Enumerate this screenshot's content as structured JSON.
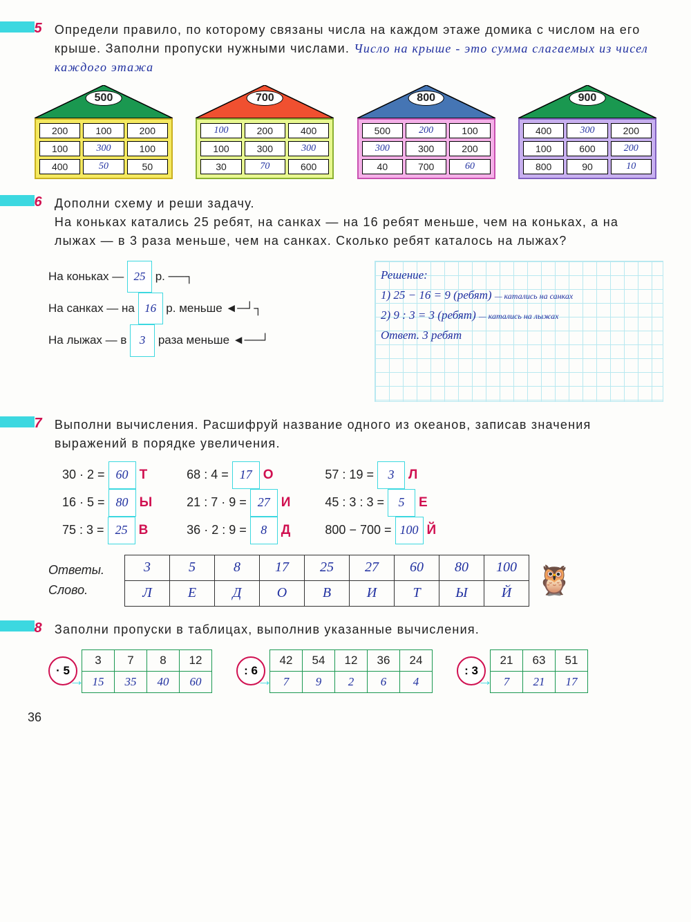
{
  "page_number": "36",
  "task5": {
    "num": "5",
    "text": "Определи правило, по которому связаны числа на каждом этаже домика с числом на его крыше. Заполни пропуски нужными числами.",
    "handwritten": "Число на крыше - это сумма слагаемых из чисел каждого этажа",
    "houses": [
      {
        "roof": "500",
        "roof_fill": "#1a9850",
        "body_color": "#f5e960",
        "border": "#c9b020",
        "rows": [
          [
            "200",
            "100",
            "200"
          ],
          [
            "100",
            "300",
            "100"
          ],
          [
            "400",
            "50",
            "50"
          ]
        ],
        "hand": [
          [
            0,
            0,
            0
          ],
          [
            0,
            1,
            0
          ],
          [
            0,
            1,
            0
          ]
        ]
      },
      {
        "roof": "700",
        "roof_fill": "#f05030",
        "body_color": "#e8f890",
        "border": "#8ab030",
        "rows": [
          [
            "100",
            "200",
            "400"
          ],
          [
            "100",
            "300",
            "300"
          ],
          [
            "30",
            "70",
            "600"
          ]
        ],
        "hand": [
          [
            1,
            0,
            0
          ],
          [
            0,
            0,
            1
          ],
          [
            0,
            1,
            0
          ]
        ]
      },
      {
        "roof": "800",
        "roof_fill": "#4575b4",
        "body_color": "#f5b0e8",
        "border": "#c850b0",
        "rows": [
          [
            "500",
            "200",
            "100"
          ],
          [
            "300",
            "300",
            "200"
          ],
          [
            "40",
            "700",
            "60"
          ]
        ],
        "hand": [
          [
            0,
            1,
            0
          ],
          [
            1,
            0,
            0
          ],
          [
            0,
            0,
            1
          ]
        ]
      },
      {
        "roof": "900",
        "roof_fill": "#1a9850",
        "body_color": "#c8b0f0",
        "border": "#8060c0",
        "rows": [
          [
            "400",
            "300",
            "200"
          ],
          [
            "100",
            "600",
            "200"
          ],
          [
            "800",
            "90",
            "10"
          ]
        ],
        "hand": [
          [
            0,
            1,
            0
          ],
          [
            0,
            0,
            1
          ],
          [
            0,
            0,
            1
          ]
        ]
      }
    ]
  },
  "task6": {
    "num": "6",
    "title": "Дополни схему и реши задачу.",
    "text": "На коньках катались 25 ребят, на санках — на 16 ребят меньше, чем на коньках, а на лыжах — в 3 раза меньше, чем на санках. Сколько ребят каталось на лыжах?",
    "schema": {
      "l1a": "На коньках — ",
      "l1v": "25",
      "l1b": " р.",
      "l2a": "На санках — на ",
      "l2v": "16",
      "l2b": " р. меньше",
      "l3a": "На лыжах — в ",
      "l3v": "3",
      "l3b": " раза меньше"
    },
    "solution": {
      "h": "Решение:",
      "s1": "1) 25 − 16 = 9 (ребят)",
      "n1": "— катались на санках",
      "s2": "2) 9 : 3 = 3 (ребят)",
      "n2": "— катались на лыжах",
      "ans": "Ответ. 3 ребят"
    }
  },
  "task7": {
    "num": "7",
    "text": "Выполни вычисления. Расшифруй название одного из океанов, записав значения выражений в порядке увеличения.",
    "cols": [
      [
        {
          "e": "30 · 2 =",
          "v": "60",
          "l": "Т"
        },
        {
          "e": "16 · 5 =",
          "v": "80",
          "l": "Ы"
        },
        {
          "e": "75 : 3 =",
          "v": "25",
          "l": "В"
        }
      ],
      [
        {
          "e": "68 : 4 =",
          "v": "17",
          "l": "О"
        },
        {
          "e": "21 : 7 · 9 =",
          "v": "27",
          "l": "И"
        },
        {
          "e": "36 · 2 : 9 =",
          "v": "8",
          "l": "Д"
        }
      ],
      [
        {
          "e": "57 : 19 =",
          "v": "3",
          "l": "Л"
        },
        {
          "e": "45 : 3 : 3 =",
          "v": "5",
          "l": "Е"
        },
        {
          "e": "800 − 700 =",
          "v": "100",
          "l": "Й"
        }
      ]
    ],
    "answers_label": "Ответы.",
    "word_label": "Слово.",
    "answers": [
      "3",
      "5",
      "8",
      "17",
      "25",
      "27",
      "60",
      "80",
      "100"
    ],
    "word": [
      "Л",
      "Е",
      "Д",
      "О",
      "В",
      "И",
      "Т",
      "Ы",
      "Й"
    ]
  },
  "task8": {
    "num": "8",
    "text": "Заполни пропуски в таблицах, выполнив указанные вычисления.",
    "units": [
      {
        "op": "· 5",
        "top": [
          "3",
          "7",
          "8",
          "12"
        ],
        "bot": [
          "15",
          "35",
          "40",
          "60"
        ]
      },
      {
        "op": ": 6",
        "top": [
          "42",
          "54",
          "12",
          "36",
          "24"
        ],
        "bot": [
          "7",
          "9",
          "2",
          "6",
          "4"
        ]
      },
      {
        "op": ": 3",
        "top": [
          "21",
          "63",
          "51"
        ],
        "bot": [
          "7",
          "21",
          "17"
        ]
      }
    ]
  }
}
